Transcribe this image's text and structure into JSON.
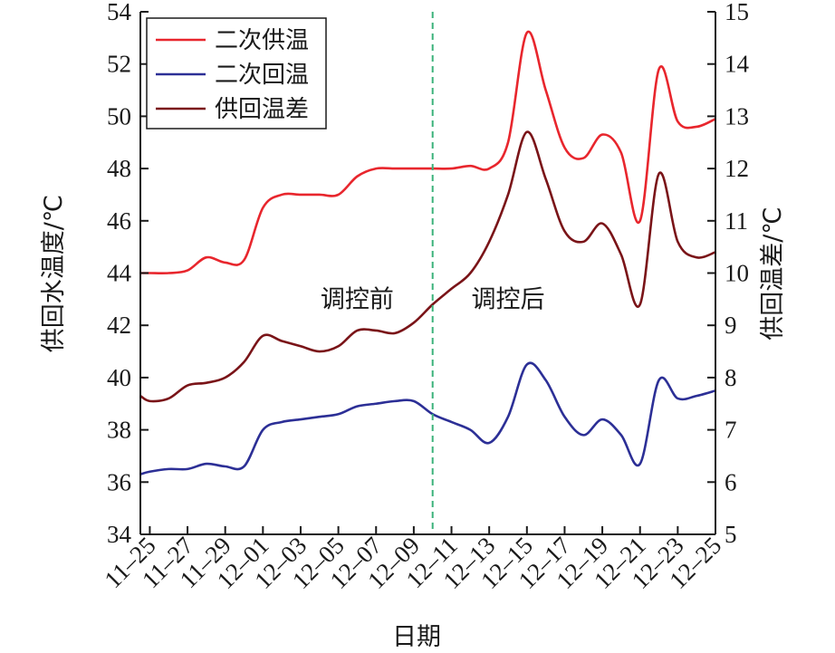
{
  "chart_data": {
    "type": "line",
    "xlabel": "日期",
    "ylabel_left": "供回水温度/℃",
    "ylabel_right": "供回温差/℃",
    "ylim_left": [
      34,
      54
    ],
    "ylim_right": [
      5,
      15
    ],
    "yticks_left": [
      "34",
      "36",
      "38",
      "40",
      "42",
      "44",
      "46",
      "48",
      "50",
      "52",
      "54"
    ],
    "yticks_right": [
      "5",
      "6",
      "7",
      "8",
      "9",
      "10",
      "11",
      "12",
      "13",
      "14",
      "15"
    ],
    "xlim": [
      -0.5,
      30
    ],
    "xtick_positions": [
      0,
      2,
      4,
      6,
      8,
      10,
      12,
      14,
      16,
      18,
      20,
      22,
      24,
      26,
      28,
      30
    ],
    "x_tick_labels": [
      "11–25",
      "11–27",
      "11–29",
      "12–01",
      "12–03",
      "12–05",
      "12–07",
      "12–09",
      "12–11",
      "12–13",
      "12–15",
      "12–17",
      "12–19",
      "12–21",
      "12–23",
      "12–25"
    ],
    "divider_x": 15,
    "annotations": [
      {
        "text": "调控前",
        "x": 11,
        "y": 43
      },
      {
        "text": "调控后",
        "x": 19,
        "y": 43
      }
    ],
    "legend_position": "top-left",
    "series": [
      {
        "name": "二次供温",
        "axis": "left",
        "color": "#e8262d",
        "points": [
          [
            -0.5,
            44
          ],
          [
            0,
            44
          ],
          [
            1,
            44
          ],
          [
            2,
            44.1
          ],
          [
            3,
            44.6
          ],
          [
            4,
            44.4
          ],
          [
            5,
            44.5
          ],
          [
            6,
            46.5
          ],
          [
            7,
            47
          ],
          [
            8,
            47
          ],
          [
            9,
            47
          ],
          [
            10,
            47
          ],
          [
            11,
            47.7
          ],
          [
            12,
            48
          ],
          [
            13,
            48
          ],
          [
            14,
            48
          ],
          [
            15,
            48
          ],
          [
            16,
            48
          ],
          [
            17,
            48.1
          ],
          [
            18,
            48
          ],
          [
            19,
            49
          ],
          [
            20,
            53.2
          ],
          [
            21,
            51
          ],
          [
            22,
            48.8
          ],
          [
            23,
            48.4
          ],
          [
            24,
            49.3
          ],
          [
            25,
            48.6
          ],
          [
            26,
            46
          ],
          [
            27,
            51.8
          ],
          [
            28,
            49.8
          ],
          [
            29,
            49.6
          ],
          [
            30,
            49.9
          ]
        ]
      },
      {
        "name": "二次回温",
        "axis": "left",
        "color": "#2c2f96",
        "points": [
          [
            -0.5,
            36.3
          ],
          [
            0,
            36.4
          ],
          [
            1,
            36.5
          ],
          [
            2,
            36.5
          ],
          [
            3,
            36.7
          ],
          [
            4,
            36.6
          ],
          [
            5,
            36.6
          ],
          [
            6,
            38
          ],
          [
            7,
            38.3
          ],
          [
            8,
            38.4
          ],
          [
            9,
            38.5
          ],
          [
            10,
            38.6
          ],
          [
            11,
            38.9
          ],
          [
            12,
            39
          ],
          [
            13,
            39.1
          ],
          [
            14,
            39.1
          ],
          [
            15,
            38.6
          ],
          [
            16,
            38.3
          ],
          [
            17,
            38
          ],
          [
            18,
            37.5
          ],
          [
            19,
            38.5
          ],
          [
            20,
            40.5
          ],
          [
            21,
            39.9
          ],
          [
            22,
            38.5
          ],
          [
            23,
            37.8
          ],
          [
            24,
            38.4
          ],
          [
            25,
            37.8
          ],
          [
            26,
            36.7
          ],
          [
            27,
            39.9
          ],
          [
            28,
            39.2
          ],
          [
            29,
            39.3
          ],
          [
            30,
            39.5
          ]
        ]
      },
      {
        "name": "供回温差",
        "axis": "right",
        "color": "#7a1418",
        "points": [
          [
            -0.5,
            7.65
          ],
          [
            0,
            7.55
          ],
          [
            1,
            7.6
          ],
          [
            2,
            7.85
          ],
          [
            3,
            7.9
          ],
          [
            4,
            8
          ],
          [
            5,
            8.3
          ],
          [
            6,
            8.8
          ],
          [
            7,
            8.7
          ],
          [
            8,
            8.6
          ],
          [
            9,
            8.5
          ],
          [
            10,
            8.6
          ],
          [
            11,
            8.9
          ],
          [
            12,
            8.9
          ],
          [
            13,
            8.85
          ],
          [
            14,
            9.05
          ],
          [
            15,
            9.4
          ],
          [
            16,
            9.7
          ],
          [
            17,
            10
          ],
          [
            18,
            10.6
          ],
          [
            19,
            11.5
          ],
          [
            20,
            12.7
          ],
          [
            21,
            11.8
          ],
          [
            22,
            10.8
          ],
          [
            23,
            10.6
          ],
          [
            24,
            10.95
          ],
          [
            25,
            10.35
          ],
          [
            26,
            9.4
          ],
          [
            27,
            11.9
          ],
          [
            28,
            10.6
          ],
          [
            29,
            10.3
          ],
          [
            30,
            10.4
          ]
        ]
      }
    ]
  }
}
